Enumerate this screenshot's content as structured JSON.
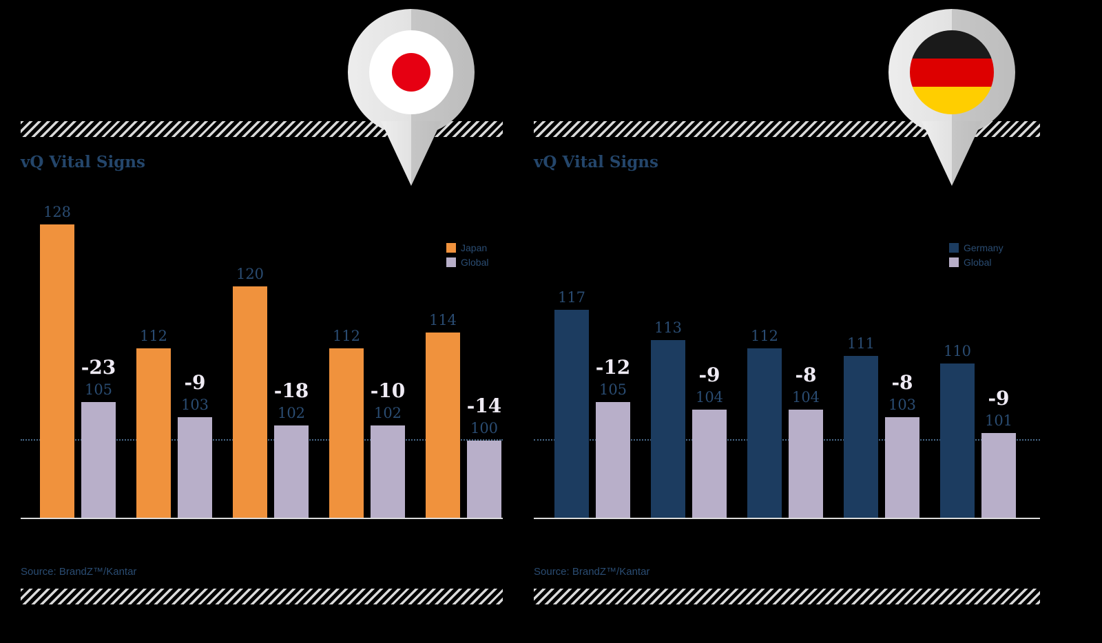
{
  "icons": {
    "left_pin": "map-pin-with-japan-flag",
    "right_pin": "map-pin-with-germany-flag"
  },
  "colors": {
    "background": "#000000",
    "japan_bar": "#f0923d",
    "germany_bar": "#1c3c60",
    "global_bar": "#b8afc9",
    "text_navy": "#2a4c72",
    "diff_text": "#efebf4",
    "baseline_dotted": "#4a6b8c",
    "japan_flag_red": "#e60012",
    "germany_flag_black": "#1a1a1a",
    "germany_flag_red": "#dd0000",
    "germany_flag_gold": "#ffce00"
  },
  "chart_data": [
    {
      "type": "bar",
      "title": "vQ Vital Signs",
      "source": "Source: BrandZ™/Kantar",
      "categories": [
        "pair-1",
        "pair-2",
        "pair-3",
        "pair-4",
        "pair-5"
      ],
      "series": [
        {
          "name": "Japan",
          "color": "#f0923d",
          "values": [
            128,
            112,
            120,
            112,
            114
          ]
        },
        {
          "name": "Global",
          "color": "#b8afc9",
          "values": [
            105,
            103,
            102,
            102,
            100
          ]
        }
      ],
      "diff_labels": [
        "-23",
        "-9",
        "-18",
        "-10",
        "-14"
      ],
      "baseline_value": 100,
      "ylim": [
        90,
        130
      ],
      "legend_position": "top-right",
      "grid": "single dotted horizontal line at value 100"
    },
    {
      "type": "bar",
      "title": "vQ Vital Signs",
      "source": "Source: BrandZ™/Kantar",
      "categories": [
        "pair-1",
        "pair-2",
        "pair-3",
        "pair-4",
        "pair-5"
      ],
      "series": [
        {
          "name": "Germany",
          "color": "#1c3c60",
          "values": [
            117,
            113,
            112,
            111,
            110
          ]
        },
        {
          "name": "Global",
          "color": "#b8afc9",
          "values": [
            105,
            104,
            104,
            103,
            101
          ]
        }
      ],
      "diff_labels": [
        "-12",
        "-9",
        "-8",
        "-8",
        "-9"
      ],
      "baseline_value": 100,
      "ylim": [
        90,
        130
      ],
      "legend_position": "top-right",
      "grid": "single dotted horizontal line at value 100"
    }
  ]
}
